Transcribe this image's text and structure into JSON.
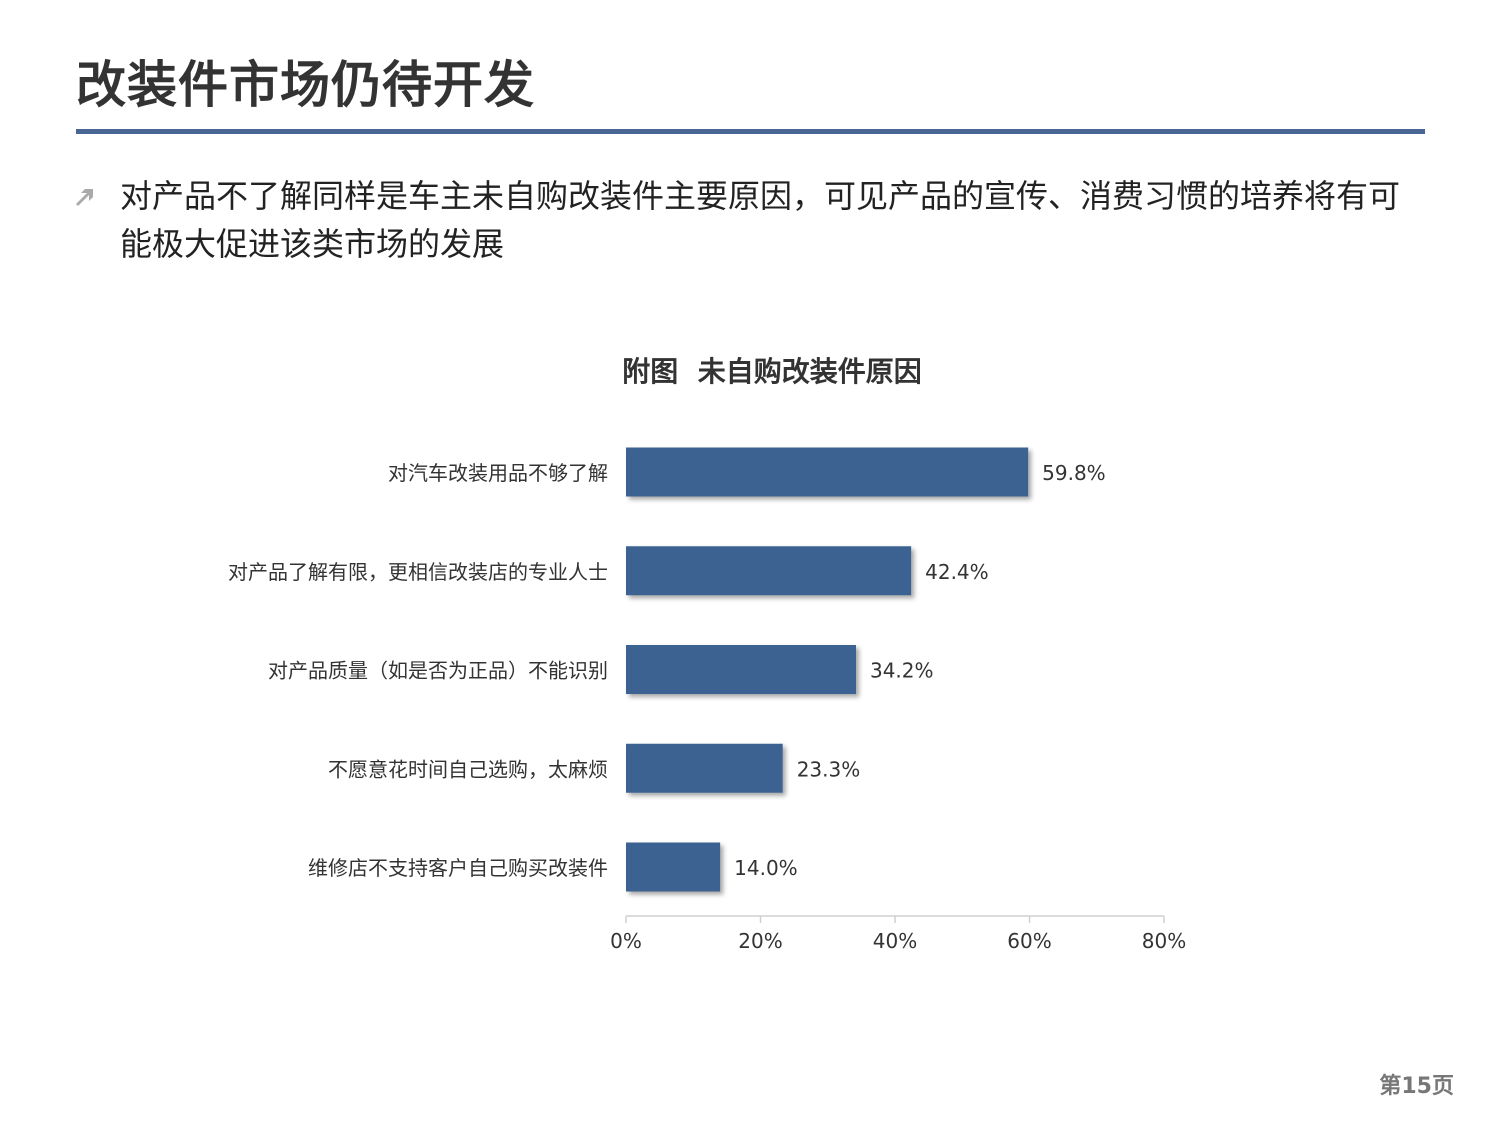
{
  "page": {
    "title": "改装件市场仍待开发",
    "bullet": "对产品不了解同样是车主未自购改装件主要原因，可见产品的宣传、消费习惯的培养将有可能极大促进该类市场的发展",
    "page_number": "第15页"
  },
  "colors": {
    "accent_rule": "#4a6694",
    "bar": "#3b6290",
    "bullet_icon": "#aaaaaa"
  },
  "icons": {
    "bullet": "arrow-up-right-icon"
  },
  "chart_data": {
    "type": "bar",
    "orientation": "horizontal",
    "title": "附图  未自购改装件原因",
    "categories": [
      "对汽车改装用品不够了解",
      "对产品了解有限，更相信改装店的专业人士",
      "对产品质量（如是否为正品）不能识别",
      "不愿意花时间自己选购，太麻烦",
      "维修店不支持客户自己购买改装件"
    ],
    "values": [
      59.8,
      42.4,
      34.2,
      23.3,
      14.0
    ],
    "data_labels": [
      "59.8%",
      "42.4%",
      "34.2%",
      "23.3%",
      "14.0%"
    ],
    "xlim": [
      0,
      80
    ],
    "xticks": [
      0,
      20,
      40,
      60,
      80
    ],
    "xtick_labels": [
      "0%",
      "20%",
      "40%",
      "60%",
      "80%"
    ],
    "xlabel": "",
    "ylabel": "",
    "grid": false,
    "legend": "none"
  }
}
